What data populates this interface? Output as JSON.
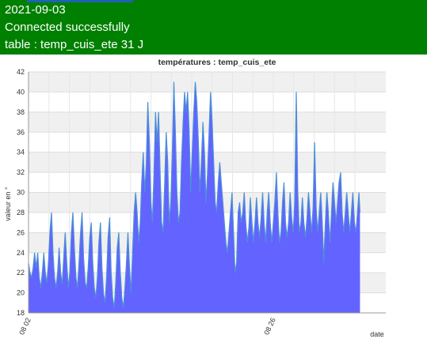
{
  "header": {
    "date": "2021-09-03",
    "status": "Connected successfully",
    "table_info": "table : temp_cuis_ete 31 J"
  },
  "colors": {
    "header_bg": "#008000",
    "area_fill": "#5b5bff",
    "line": "#4d8fd8",
    "band": "#f0f0f0"
  },
  "chart_data": {
    "type": "area",
    "title": "températures : temp_cuis_ete",
    "ylabel": "valeur en °",
    "xlabel": "date",
    "ylim": [
      18,
      42
    ],
    "yticks": [
      18,
      20,
      22,
      24,
      26,
      28,
      30,
      32,
      34,
      36,
      38,
      40,
      42
    ],
    "grid": true,
    "x_range_days": [
      0,
      31
    ],
    "xticks": [
      {
        "day": 0,
        "label": "08 02"
      },
      {
        "day": 24,
        "label": "08 26"
      }
    ],
    "series": [
      {
        "name": "",
        "points": [
          [
            0.0,
            23.0
          ],
          [
            0.15,
            22.0
          ],
          [
            0.3,
            21.5
          ],
          [
            0.45,
            22.5
          ],
          [
            0.6,
            24.0
          ],
          [
            0.75,
            22.5
          ],
          [
            0.9,
            24.0
          ],
          [
            1.05,
            21.5
          ],
          [
            1.2,
            20.5
          ],
          [
            1.35,
            22.0
          ],
          [
            1.5,
            24.0
          ],
          [
            1.65,
            22.0
          ],
          [
            1.8,
            21.0
          ],
          [
            1.95,
            23.0
          ],
          [
            2.1,
            26.0
          ],
          [
            2.25,
            28.0
          ],
          [
            2.4,
            24.0
          ],
          [
            2.55,
            21.5
          ],
          [
            2.7,
            20.5
          ],
          [
            2.85,
            22.0
          ],
          [
            3.0,
            24.5
          ],
          [
            3.15,
            22.0
          ],
          [
            3.3,
            20.8
          ],
          [
            3.45,
            23.5
          ],
          [
            3.6,
            26.0
          ],
          [
            3.75,
            23.0
          ],
          [
            3.9,
            20.5
          ],
          [
            4.05,
            22.0
          ],
          [
            4.2,
            26.0
          ],
          [
            4.35,
            28.0
          ],
          [
            4.5,
            24.5
          ],
          [
            4.65,
            21.5
          ],
          [
            4.8,
            20.5
          ],
          [
            4.95,
            23.0
          ],
          [
            5.1,
            26.0
          ],
          [
            5.25,
            28.0
          ],
          [
            5.4,
            23.5
          ],
          [
            5.55,
            21.0
          ],
          [
            5.7,
            20.5
          ],
          [
            5.85,
            22.5
          ],
          [
            6.0,
            25.5
          ],
          [
            6.15,
            27.0
          ],
          [
            6.3,
            23.0
          ],
          [
            6.45,
            20.5
          ],
          [
            6.6,
            19.5
          ],
          [
            6.75,
            21.5
          ],
          [
            6.9,
            25.0
          ],
          [
            7.05,
            27.0
          ],
          [
            7.2,
            22.5
          ],
          [
            7.35,
            20.0
          ],
          [
            7.5,
            19.0
          ],
          [
            7.65,
            21.5
          ],
          [
            7.8,
            25.5
          ],
          [
            7.95,
            27.5
          ],
          [
            8.1,
            22.0
          ],
          [
            8.25,
            19.5
          ],
          [
            8.4,
            18.5
          ],
          [
            8.55,
            21.0
          ],
          [
            8.7,
            24.5
          ],
          [
            8.85,
            26.0
          ],
          [
            9.0,
            22.0
          ],
          [
            9.15,
            19.5
          ],
          [
            9.3,
            18.5
          ],
          [
            9.45,
            20.5
          ],
          [
            9.6,
            23.0
          ],
          [
            9.75,
            26.0
          ],
          [
            9.9,
            22.5
          ],
          [
            10.05,
            20.0
          ],
          [
            10.2,
            24.0
          ],
          [
            10.35,
            28.0
          ],
          [
            10.5,
            30.0
          ],
          [
            10.65,
            28.0
          ],
          [
            10.8,
            25.0
          ],
          [
            10.95,
            27.0
          ],
          [
            11.1,
            31.0
          ],
          [
            11.25,
            34.0
          ],
          [
            11.4,
            30.0
          ],
          [
            11.55,
            33.0
          ],
          [
            11.7,
            39.0
          ],
          [
            11.85,
            35.0
          ],
          [
            12.0,
            29.0
          ],
          [
            12.15,
            27.0
          ],
          [
            12.3,
            32.0
          ],
          [
            12.45,
            38.0
          ],
          [
            12.6,
            35.0
          ],
          [
            12.75,
            38.0
          ],
          [
            12.9,
            32.0
          ],
          [
            13.05,
            27.0
          ],
          [
            13.2,
            26.0
          ],
          [
            13.35,
            31.0
          ],
          [
            13.5,
            36.0
          ],
          [
            13.65,
            33.0
          ],
          [
            13.8,
            27.0
          ],
          [
            13.95,
            29.0
          ],
          [
            14.1,
            34.0
          ],
          [
            14.25,
            41.0
          ],
          [
            14.4,
            36.0
          ],
          [
            14.55,
            30.0
          ],
          [
            14.7,
            27.0
          ],
          [
            14.85,
            28.0
          ],
          [
            15.0,
            33.0
          ],
          [
            15.15,
            37.0
          ],
          [
            15.3,
            40.0
          ],
          [
            15.45,
            38.0
          ],
          [
            15.6,
            40.0
          ],
          [
            15.75,
            36.0
          ],
          [
            15.9,
            30.0
          ],
          [
            16.05,
            34.0
          ],
          [
            16.2,
            38.0
          ],
          [
            16.35,
            41.0
          ],
          [
            16.5,
            39.0
          ],
          [
            16.65,
            35.0
          ],
          [
            16.8,
            30.0
          ],
          [
            16.95,
            33.0
          ],
          [
            17.1,
            37.0
          ],
          [
            17.25,
            34.0
          ],
          [
            17.4,
            29.0
          ],
          [
            17.55,
            32.0
          ],
          [
            17.7,
            36.0
          ],
          [
            17.85,
            40.0
          ],
          [
            18.0,
            37.0
          ],
          [
            18.15,
            33.0
          ],
          [
            18.3,
            29.0
          ],
          [
            18.45,
            28.0
          ],
          [
            18.6,
            31.0
          ],
          [
            18.75,
            33.0
          ],
          [
            18.9,
            31.0
          ],
          [
            19.05,
            29.0
          ],
          [
            19.2,
            27.0
          ],
          [
            19.35,
            25.0
          ],
          [
            19.5,
            24.0
          ],
          [
            19.65,
            26.0
          ],
          [
            19.8,
            28.0
          ],
          [
            19.95,
            30.0
          ],
          [
            20.1,
            26.0
          ],
          [
            20.25,
            22.0
          ],
          [
            20.4,
            23.0
          ],
          [
            20.55,
            28.0
          ],
          [
            20.7,
            29.0
          ],
          [
            20.85,
            27.0
          ],
          [
            21.0,
            28.0
          ],
          [
            21.15,
            30.0
          ],
          [
            21.3,
            27.0
          ],
          [
            21.45,
            25.0
          ],
          [
            21.6,
            26.5
          ],
          [
            21.75,
            29.5
          ],
          [
            21.9,
            27.0
          ],
          [
            22.05,
            25.0
          ],
          [
            22.2,
            27.0
          ],
          [
            22.35,
            29.5
          ],
          [
            22.5,
            27.0
          ],
          [
            22.65,
            25.5
          ],
          [
            22.8,
            27.5
          ],
          [
            22.95,
            30.0
          ],
          [
            23.1,
            27.0
          ],
          [
            23.25,
            25.0
          ],
          [
            23.4,
            28.0
          ],
          [
            23.55,
            30.0
          ],
          [
            23.7,
            27.0
          ],
          [
            23.85,
            25.0
          ],
          [
            24.0,
            27.0
          ],
          [
            24.15,
            29.0
          ],
          [
            24.3,
            32.0
          ],
          [
            24.45,
            28.0
          ],
          [
            24.6,
            25.0
          ],
          [
            24.75,
            26.0
          ],
          [
            24.9,
            29.0
          ],
          [
            25.05,
            31.0
          ],
          [
            25.2,
            27.0
          ],
          [
            25.35,
            25.5
          ],
          [
            25.5,
            27.0
          ],
          [
            25.65,
            30.0
          ],
          [
            25.8,
            27.5
          ],
          [
            25.95,
            26.0
          ],
          [
            26.1,
            29.0
          ],
          [
            26.25,
            40.0
          ],
          [
            26.4,
            30.0
          ],
          [
            26.55,
            26.0
          ],
          [
            26.7,
            27.0
          ],
          [
            26.85,
            29.5
          ],
          [
            27.0,
            27.0
          ],
          [
            27.15,
            25.5
          ],
          [
            27.3,
            27.5
          ],
          [
            27.45,
            30.0
          ],
          [
            27.6,
            28.0
          ],
          [
            27.75,
            26.0
          ],
          [
            27.9,
            28.5
          ],
          [
            28.05,
            35.0
          ],
          [
            28.2,
            28.5
          ],
          [
            28.35,
            26.0
          ],
          [
            28.5,
            28.0
          ],
          [
            28.65,
            30.0
          ],
          [
            28.8,
            27.0
          ],
          [
            28.95,
            23.0
          ],
          [
            29.1,
            27.0
          ],
          [
            29.25,
            30.0
          ],
          [
            29.4,
            28.0
          ],
          [
            29.55,
            25.0
          ],
          [
            29.7,
            28.0
          ],
          [
            29.85,
            31.0
          ],
          [
            30.0,
            29.0
          ],
          [
            30.15,
            27.0
          ],
          [
            30.3,
            29.0
          ],
          [
            30.45,
            31.0
          ],
          [
            30.6,
            32.0
          ],
          [
            30.75,
            28.0
          ],
          [
            30.9,
            26.0
          ],
          [
            31.05,
            28.0
          ],
          [
            31.2,
            30.0
          ],
          [
            31.35,
            28.0
          ],
          [
            31.5,
            26.0
          ],
          [
            31.65,
            28.0
          ],
          [
            31.8,
            30.0
          ],
          [
            31.95,
            27.0
          ],
          [
            32.1,
            26.0
          ],
          [
            32.25,
            28.0
          ],
          [
            32.4,
            30.0
          ],
          [
            32.5,
            28.0
          ]
        ]
      }
    ]
  }
}
